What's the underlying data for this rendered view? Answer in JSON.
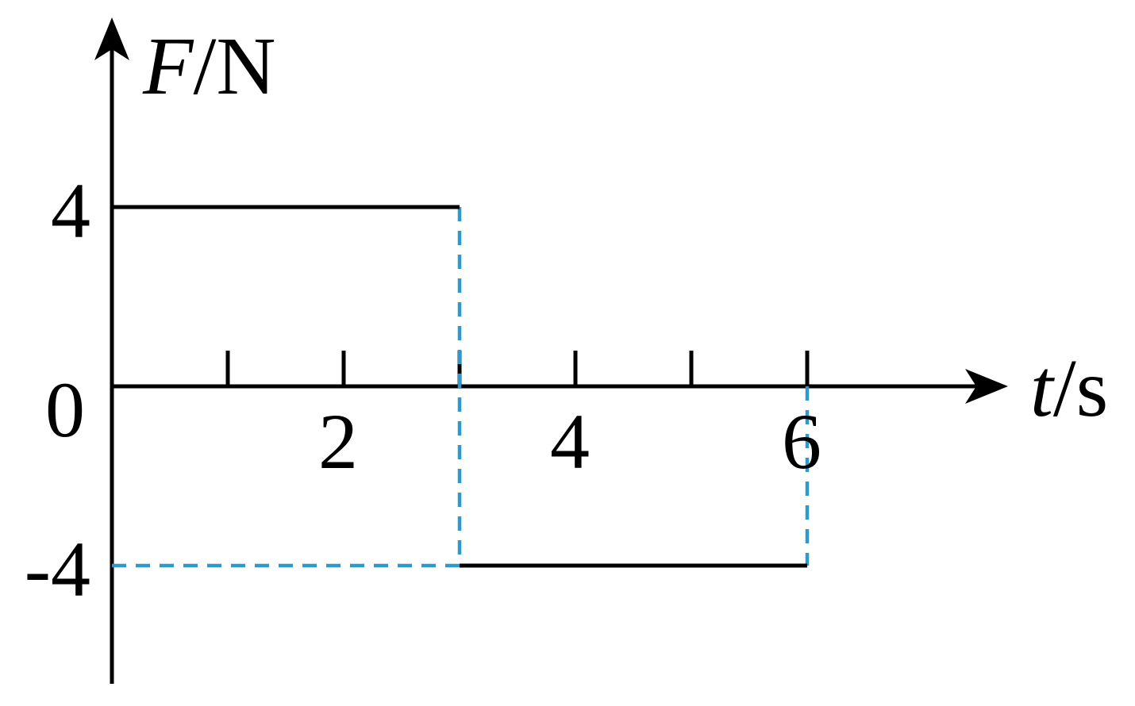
{
  "chart_data": {
    "type": "line",
    "style": "step",
    "xlabel": {
      "var": "t",
      "unit": "/s"
    },
    "ylabel": {
      "var": "F",
      "unit": "/N"
    },
    "origin_label": "0",
    "xlim": [
      0,
      8.5
    ],
    "ylim": [
      -6.6,
      11.1
    ],
    "x_ticks": [
      1,
      2,
      3,
      4,
      5,
      6
    ],
    "x_tick_labels": [
      {
        "x": 2,
        "label": "2"
      },
      {
        "x": 4,
        "label": "4"
      },
      {
        "x": 6,
        "label": "6"
      }
    ],
    "y_tick_labels": [
      {
        "y": 4,
        "label": "4"
      },
      {
        "y": -4,
        "label": "-4"
      }
    ],
    "series": [
      {
        "points": [
          [
            0,
            4
          ],
          [
            3,
            4
          ]
        ]
      },
      {
        "points": [
          [
            3,
            -4
          ],
          [
            6,
            -4
          ]
        ]
      }
    ],
    "guides": [
      {
        "points": [
          [
            3,
            4
          ],
          [
            3,
            -4
          ]
        ]
      },
      {
        "points": [
          [
            0,
            -4
          ],
          [
            3,
            -4
          ]
        ]
      },
      {
        "points": [
          [
            6,
            0
          ],
          [
            6,
            -4
          ]
        ]
      }
    ],
    "colors": {
      "axis": "#000000",
      "series": "#000000",
      "guides": "#2e9acb"
    }
  }
}
